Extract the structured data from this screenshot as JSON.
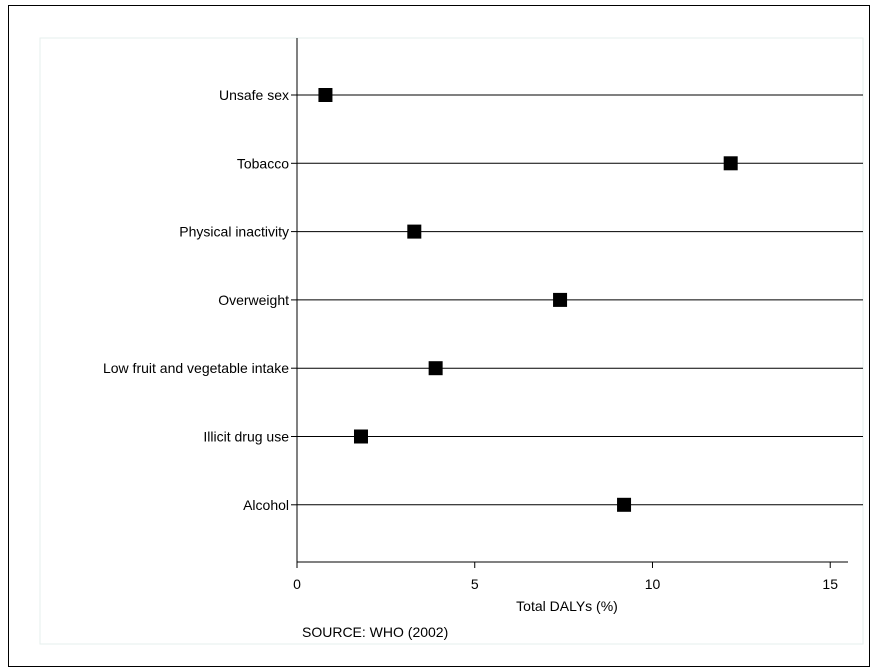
{
  "chart_data": {
    "type": "scatter",
    "categories": [
      "Unsafe sex",
      "Tobacco",
      "Physical inactivity",
      "Overweight",
      "Low fruit and vegetable intake",
      "Illicit drug use",
      "Alcohol"
    ],
    "values": [
      0.8,
      12.2,
      3.3,
      7.4,
      3.9,
      1.8,
      9.2
    ],
    "xlabel": "Total DALYs (%)",
    "ylabel": "",
    "xlim": [
      0,
      15.5
    ],
    "xticks": [
      "0",
      "5",
      "10",
      "15"
    ],
    "note": "SOURCE: WHO (2002)",
    "grid": "horizontal lines at each category",
    "marker": "square",
    "marker_color": "#000000",
    "plot_bg_color": "#ffffff",
    "panel_border_color": "#e6efec"
  }
}
